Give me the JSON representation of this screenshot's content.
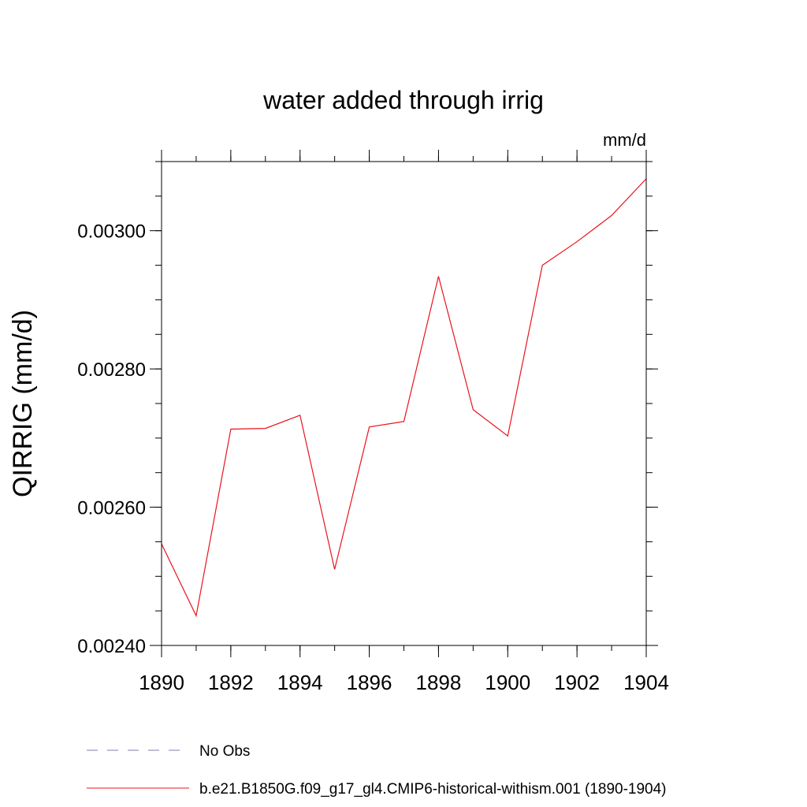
{
  "chart_data": {
    "type": "line",
    "title": "water added through irrig",
    "units_label": "mm/d",
    "xlabel": "",
    "ylabel": "QIRRIG  (mm/d)",
    "xlim": [
      1890,
      1904
    ],
    "ylim": [
      0.0024,
      0.0031
    ],
    "x_ticks": [
      1890,
      1892,
      1894,
      1896,
      1898,
      1900,
      1902,
      1904
    ],
    "x_tick_labels": [
      "1890",
      "1892",
      "1894",
      "1896",
      "1898",
      "1900",
      "1902",
      "1904"
    ],
    "y_ticks": [
      0.0024,
      0.0026,
      0.0028,
      0.003
    ],
    "y_tick_labels": [
      "0.00240",
      "0.00260",
      "0.00280",
      "0.00300"
    ],
    "y_minor_step": 5e-05,
    "x_minor_step": 1,
    "grid": false,
    "legend_position": "bottom",
    "series": [
      {
        "name": "b.e21.B1850G.f09_g17_gl4.CMIP6-historical-withism.001 (1890-1904)",
        "color": "#e8141b",
        "style": "solid",
        "x": [
          1890,
          1891,
          1892,
          1893,
          1894,
          1895,
          1896,
          1897,
          1898,
          1899,
          1900,
          1901,
          1902,
          1903,
          1904
        ],
        "y": [
          0.002547,
          0.002443,
          0.002713,
          0.002714,
          0.002733,
          0.00251,
          0.002716,
          0.002724,
          0.002934,
          0.002741,
          0.002703,
          0.00295,
          0.002984,
          0.003022,
          0.003075
        ]
      }
    ],
    "legend": [
      {
        "label": "No Obs",
        "color": "#8877aa",
        "style": "dashed"
      },
      {
        "label": "b.e21.B1850G.f09_g17_gl4.CMIP6-historical-withism.001 (1890-1904)",
        "color": "#e8141b",
        "style": "solid"
      }
    ]
  }
}
